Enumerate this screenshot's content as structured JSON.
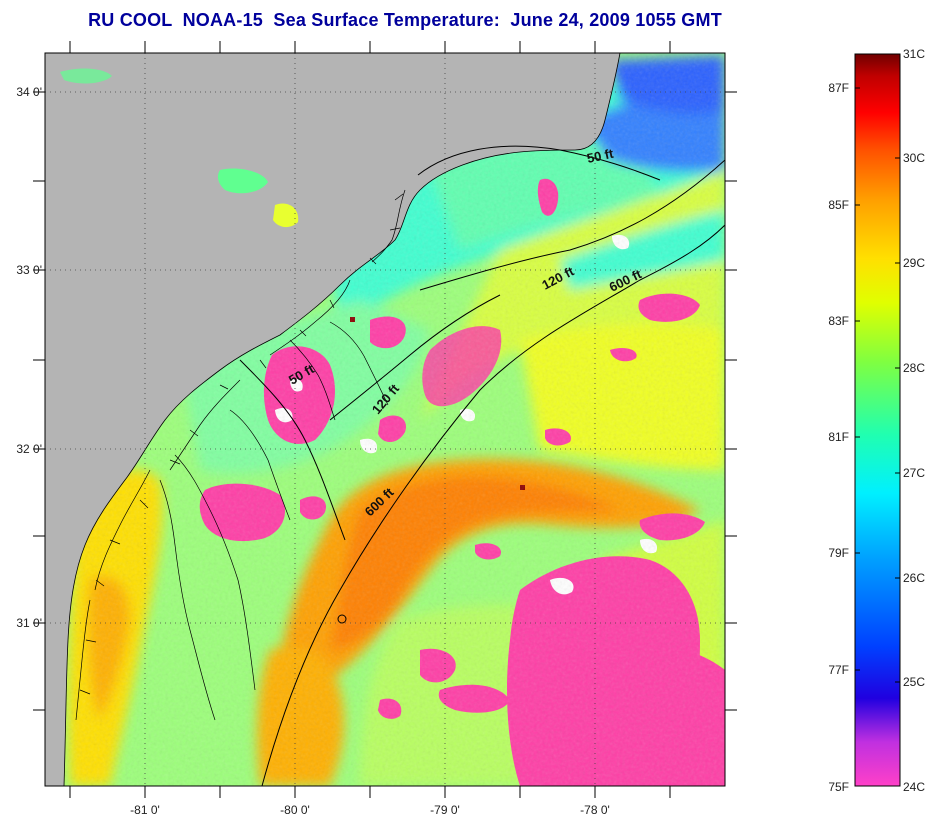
{
  "title": {
    "org": "RU COOL",
    "satellite": "NOAA-15",
    "product": "Sea Surface Temperature:",
    "datetime": "June 24, 2009 1055 GMT"
  },
  "map": {
    "lon_ticks": [
      "-81 0'",
      "-80 0'",
      "-79 0'",
      "-78 0'"
    ],
    "lat_ticks": [
      "34 0'",
      "33 0'",
      "32 0'",
      "31 0'"
    ],
    "land_color": "#b4b4b4",
    "contours": [
      {
        "label": "50 ft",
        "position": "north"
      },
      {
        "label": "120 ft",
        "position": "north"
      },
      {
        "label": "600 ft",
        "position": "north"
      },
      {
        "label": "50 ft",
        "position": "central"
      },
      {
        "label": "120 ft",
        "position": "central"
      },
      {
        "label": "600 ft",
        "position": "central"
      }
    ]
  },
  "colorbar": {
    "fahrenheit_labels": [
      "87F",
      "85F",
      "83F",
      "81F",
      "79F",
      "77F",
      "75F"
    ],
    "celsius_labels": [
      "31C",
      "30C",
      "29C",
      "28C",
      "27C",
      "26C",
      "25C",
      "24C"
    ],
    "colors": [
      "#ff3ec8",
      "#9a2cf0",
      "#0000e0",
      "#0060ff",
      "#00c8ff",
      "#00ffe0",
      "#40ff80",
      "#b0ff40",
      "#ffff00",
      "#ffc800",
      "#ff8000",
      "#ff3000",
      "#e00000",
      "#800000"
    ]
  }
}
